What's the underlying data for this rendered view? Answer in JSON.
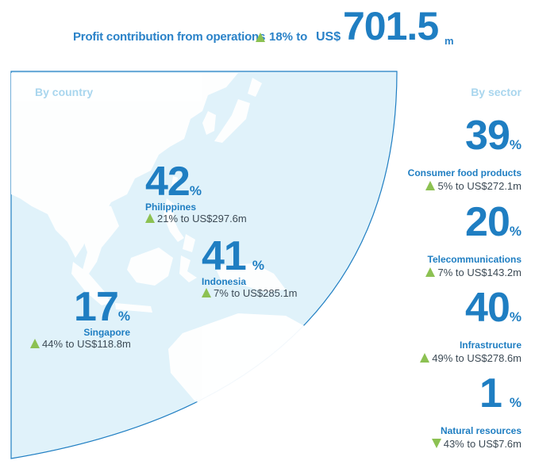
{
  "header": {
    "label": "Profit contribution from operations",
    "change": "18% to",
    "currency": "US$",
    "value": "701.5",
    "unit": "m",
    "direction": "up"
  },
  "by_country": {
    "title": "By country",
    "items": [
      {
        "name": "Philippines",
        "share": "42",
        "pct": "%",
        "change": "21% to US$297.6m",
        "direction": "up"
      },
      {
        "name": "Indonesia",
        "share": "41",
        "pct": "%",
        "change": "7% to US$285.1m",
        "direction": "up"
      },
      {
        "name": "Singapore",
        "share": "17",
        "pct": "%",
        "change": "44% to US$118.8m",
        "direction": "up"
      }
    ]
  },
  "by_sector": {
    "title": "By sector",
    "items": [
      {
        "name": "Consumer food products",
        "share": "39",
        "pct": "%",
        "change": "5% to US$272.1m",
        "direction": "up"
      },
      {
        "name": "Telecommunications",
        "share": "20",
        "pct": "%",
        "change": "7% to US$143.2m",
        "direction": "up"
      },
      {
        "name": "Infrastructure",
        "share": "40",
        "pct": "%",
        "change": "49% to US$278.6m",
        "direction": "up"
      },
      {
        "name": "Natural resources",
        "share": "1",
        "pct": "%",
        "change": "43% to US$7.6m",
        "direction": "down"
      }
    ]
  },
  "colors": {
    "accent": "#1f7ec2",
    "map_fill": "#e0f2fa",
    "land": "#ffffff",
    "arrow": "#8cc152"
  }
}
